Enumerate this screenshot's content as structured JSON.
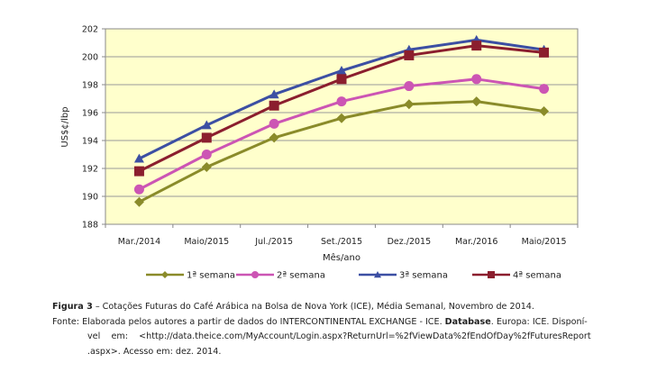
{
  "chart_data": {
    "type": "line",
    "categories": [
      "Mar./2014",
      "Maio/2015",
      "Jul./2015",
      "Set./2015",
      "Dez./2015",
      "Mar./2016",
      "Maio/2015"
    ],
    "series": [
      {
        "name": "1ª semana",
        "values": [
          189.6,
          192.1,
          194.2,
          195.6,
          196.6,
          196.8,
          196.1
        ],
        "color": "#8a8b2a",
        "marker": "diamond"
      },
      {
        "name": "2ª semana",
        "values": [
          190.5,
          193.0,
          195.2,
          196.8,
          197.9,
          198.4,
          197.7
        ],
        "color": "#cc55b4",
        "marker": "circle"
      },
      {
        "name": "3ª semana",
        "values": [
          192.7,
          195.1,
          197.3,
          199.0,
          200.5,
          201.2,
          200.5
        ],
        "color": "#3c4fa3",
        "marker": "triangle"
      },
      {
        "name": "4ª semana",
        "values": [
          191.8,
          194.2,
          196.5,
          198.4,
          200.1,
          200.8,
          200.3
        ],
        "color": "#8b1e2e",
        "marker": "square"
      }
    ],
    "xlabel": "Mês/ano",
    "ylabel": "US$¢/lbp",
    "ylim": [
      188,
      202
    ],
    "yticks": [
      188,
      190,
      192,
      194,
      196,
      198,
      200,
      202
    ],
    "grid": true,
    "plot_background": "#ffffcc",
    "legend_position": "bottom"
  },
  "caption": {
    "figure_label": "Figura 3",
    "figure_text": " – Cotações Futuras do Café Arábica na Bolsa de Nova York (ICE), Média Semanal, Novembro de 2014.",
    "source_prefix": "Fonte: Elaborada pelos autores a partir de dados do INTERCONTINENTAL EXCHANGE - ICE. ",
    "source_bold": "Database",
    "source_suffix": ". Europa: ICE. Disponí-",
    "source_line2": "vel    em:    <http://data.theice.com/MyAccount/Login.aspx?ReturnUrl=%2fViewData%2fEndOfDay%2fFuturesReport",
    "source_line3": ".aspx>. Acesso em: dez. 2014."
  }
}
